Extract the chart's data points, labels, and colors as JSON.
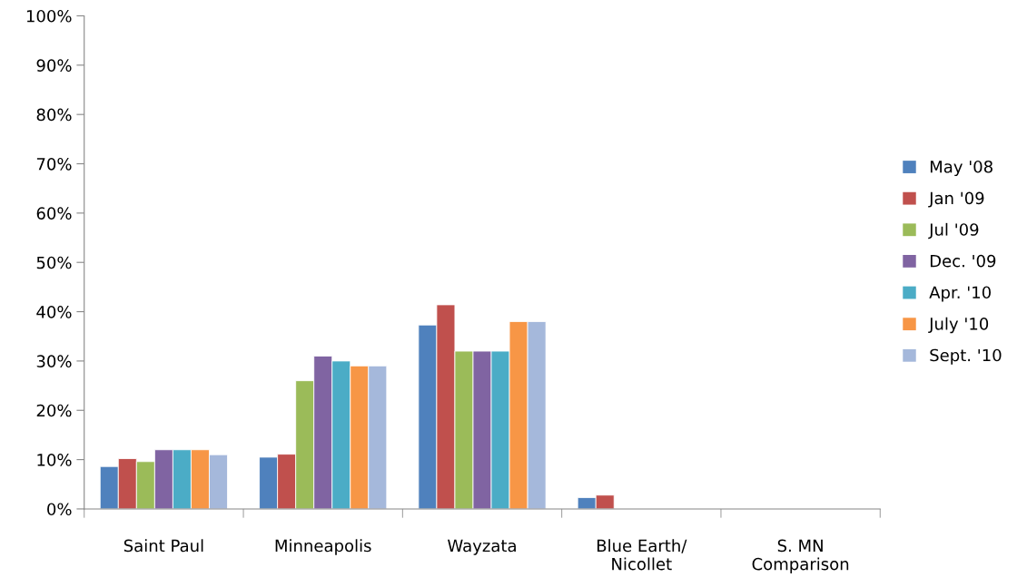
{
  "chart_data": {
    "type": "bar",
    "categories": [
      "Saint Paul",
      "Minneapolis",
      "Wayzata",
      "Blue Earth/\nNicollet",
      "S. MN\nComparison"
    ],
    "series": [
      {
        "name": "May '08",
        "color": "#4f81bd",
        "values": [
          8.6,
          10.5,
          37.3,
          2.3,
          null
        ]
      },
      {
        "name": "Jan '09",
        "color": "#c0504d",
        "values": [
          10.2,
          11.1,
          41.4,
          2.8,
          null
        ]
      },
      {
        "name": "Jul '09",
        "color": "#9bbb59",
        "values": [
          9.6,
          26,
          32,
          null,
          null
        ]
      },
      {
        "name": "Dec. '09",
        "color": "#8064a2",
        "values": [
          12,
          31,
          32,
          null,
          null
        ]
      },
      {
        "name": "Apr. '10",
        "color": "#4bacc6",
        "values": [
          12,
          30,
          32,
          null,
          null
        ]
      },
      {
        "name": "July '10",
        "color": "#f79646",
        "values": [
          12,
          29,
          38,
          null,
          null
        ]
      },
      {
        "name": "Sept. '10",
        "color": "#a5b8db",
        "values": [
          11,
          29,
          38,
          null,
          null
        ]
      }
    ],
    "ylim": [
      0,
      100
    ],
    "yticks": [
      {
        "value": 0,
        "label": "0%"
      },
      {
        "value": 10,
        "label": "10%"
      },
      {
        "value": 20,
        "label": "20%"
      },
      {
        "value": 30,
        "label": "30%"
      },
      {
        "value": 40,
        "label": "40%"
      },
      {
        "value": 50,
        "label": "50%"
      },
      {
        "value": 60,
        "label": "60%"
      },
      {
        "value": 70,
        "label": "70%"
      },
      {
        "value": 80,
        "label": "80%"
      },
      {
        "value": 90,
        "label": "90%"
      },
      {
        "value": 100,
        "label": "100%"
      }
    ],
    "grid": false,
    "legend": "right"
  }
}
